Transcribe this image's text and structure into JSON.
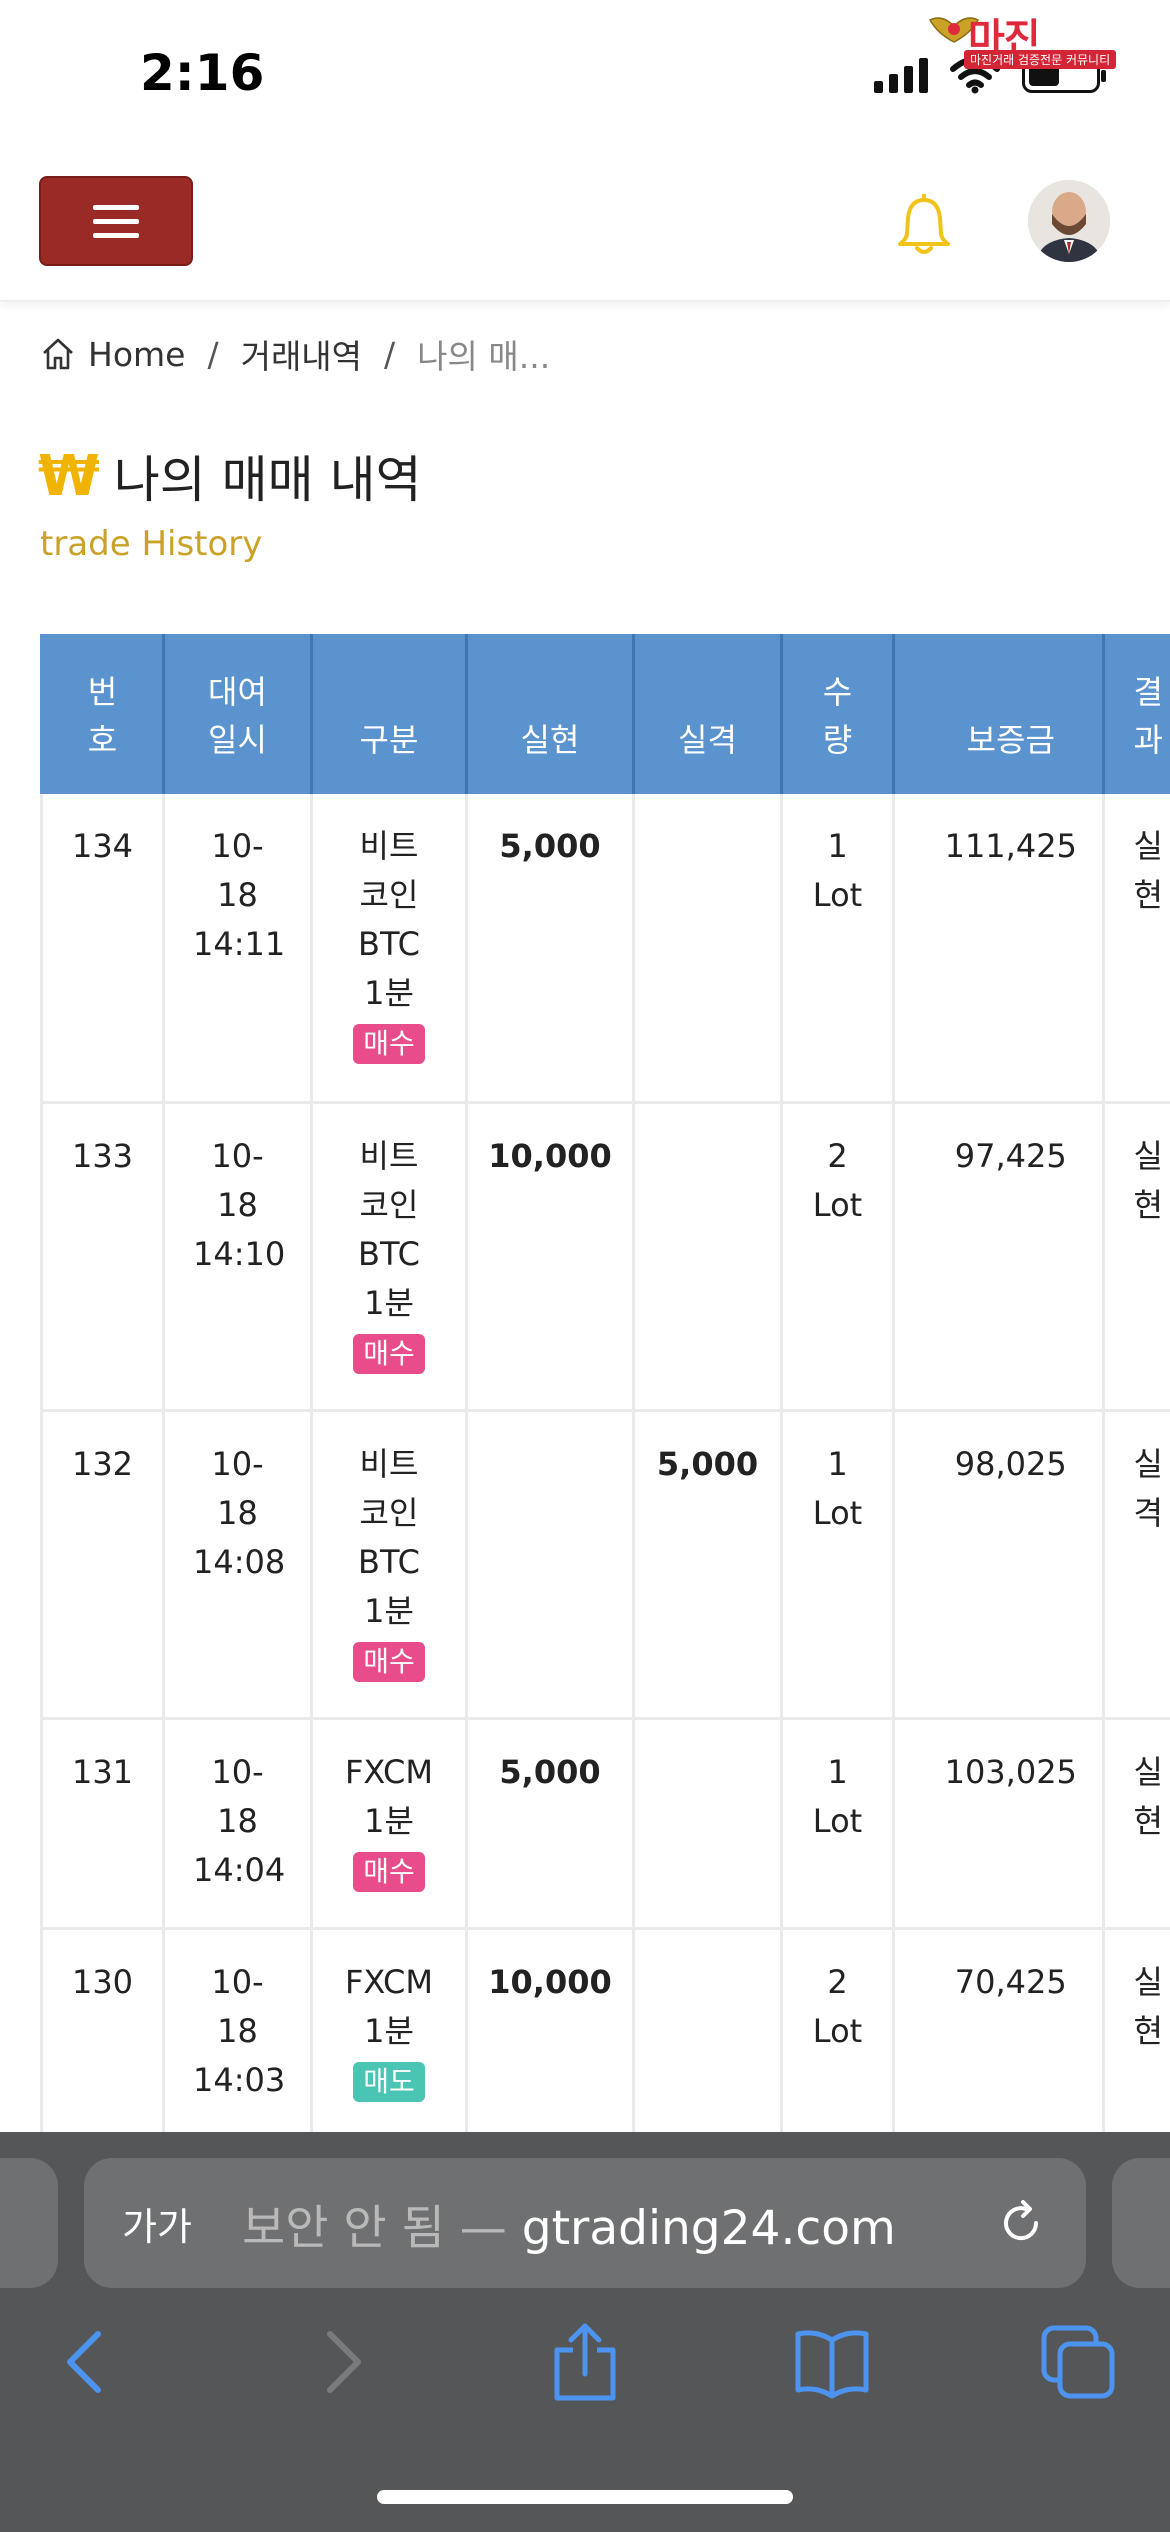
{
  "status_bar": {
    "time": "2:16",
    "battery_level": 0.45
  },
  "watermark": {
    "brand": "마진",
    "sub": "마진거래 검증전문 커뮤니티"
  },
  "header": {
    "menu_icon": "hamburger-icon",
    "bell_icon": "bell-icon",
    "bell_color": "#f0c419",
    "menu_color": "#9a2a26"
  },
  "breadcrumb": {
    "home": "Home",
    "sep": "/",
    "section": "거래내역",
    "current": "나의 매..."
  },
  "page": {
    "currency_icon": "₩",
    "title": "나의 매매 내역",
    "subtitle": "trade History"
  },
  "table": {
    "headers": {
      "no": "번호",
      "time": "대여일시",
      "type": "구분",
      "profit": "실현",
      "loss": "실격",
      "qty": "수량",
      "margin": "보증금",
      "result": "결과"
    },
    "rows": [
      {
        "no": "134",
        "time": "10-18 14:11",
        "product": "비트코인 BTC 1분",
        "side": "매수",
        "profit": "5,000",
        "loss": "",
        "qty": "1 Lot",
        "margin": "111,425",
        "result": "실현"
      },
      {
        "no": "133",
        "time": "10-18 14:10",
        "product": "비트코인 BTC 1분",
        "side": "매수",
        "profit": "10,000",
        "loss": "",
        "qty": "2 Lot",
        "margin": "97,425",
        "result": "실현"
      },
      {
        "no": "132",
        "time": "10-18 14:08",
        "product": "비트코인 BTC 1분",
        "side": "매수",
        "profit": "",
        "loss": "5,000",
        "qty": "1 Lot",
        "margin": "98,025",
        "result": "실격"
      },
      {
        "no": "131",
        "time": "10-18 14:04",
        "product": "FXCM 1분",
        "side": "매수",
        "profit": "5,000",
        "loss": "",
        "qty": "1 Lot",
        "margin": "103,025",
        "result": "실현"
      },
      {
        "no": "130",
        "time": "10-18 14:03",
        "product": "FXCM 1분",
        "side": "매도",
        "profit": "10,000",
        "loss": "",
        "qty": "2 Lot",
        "margin": "70,425",
        "result": "실현"
      }
    ]
  },
  "browser": {
    "aa": "가가",
    "insecure_label": "보안 안 됨 —",
    "domain": "gtrading24.com",
    "toolbar_icons": [
      "back-icon",
      "forward-icon",
      "share-icon",
      "bookmarks-icon",
      "tabs-icon"
    ]
  }
}
